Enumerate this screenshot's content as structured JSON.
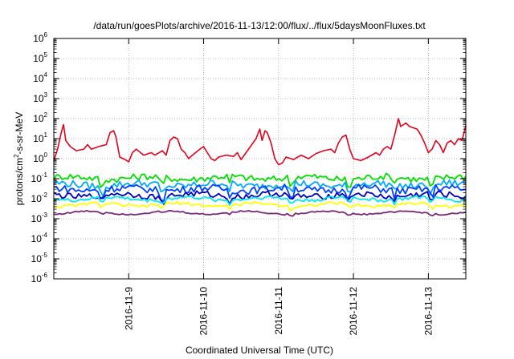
{
  "chart_data": {
    "type": "line",
    "title": "/data/run/goesPlots/archive/2016-11-13/12:00/flux/../flux/5daysMoonFluxes.txt",
    "xlabel": "Coordinated Universal Time (UTC)",
    "ylabel": {
      "pre": "protons/cm",
      "sup": "2",
      "post": "-s-sr-MeV"
    },
    "y_scale": "log",
    "ylim_exp": [
      -6,
      6
    ],
    "y_tick_labels": [
      {
        "base": "10",
        "exp": "6"
      },
      {
        "base": "10",
        "exp": "5"
      },
      {
        "base": "10",
        "exp": "4"
      },
      {
        "base": "10",
        "exp": "3"
      },
      {
        "base": "10",
        "exp": "2"
      },
      {
        "base": "10",
        "exp": "1"
      },
      {
        "base": "10",
        "exp": "0"
      },
      {
        "base": "10",
        "exp": "-1"
      },
      {
        "base": "10",
        "exp": "-2"
      },
      {
        "base": "10",
        "exp": "-3"
      },
      {
        "base": "10",
        "exp": "-4"
      },
      {
        "base": "10",
        "exp": "-5"
      },
      {
        "base": "10",
        "exp": "-6"
      }
    ],
    "xlim_days": [
      0,
      5.5
    ],
    "x_ticks": [
      {
        "day": 1,
        "label": "2016-11-9"
      },
      {
        "day": 2,
        "label": "2016-11-10"
      },
      {
        "day": 3,
        "label": "2016-11-11"
      },
      {
        "day": 4,
        "label": "2016-11-12"
      },
      {
        "day": 5,
        "label": "2016-11-13"
      }
    ],
    "grid": true,
    "legend": "none",
    "series": [
      {
        "color": "#e4001a",
        "points": [
          [
            0,
            0.8
          ],
          [
            0.05,
            3
          ],
          [
            0.1,
            20
          ],
          [
            0.13,
            50
          ],
          [
            0.16,
            8
          ],
          [
            0.22,
            4
          ],
          [
            0.3,
            2.5
          ],
          [
            0.4,
            3
          ],
          [
            0.45,
            5
          ],
          [
            0.5,
            3
          ],
          [
            0.6,
            4
          ],
          [
            0.7,
            5
          ],
          [
            0.75,
            20
          ],
          [
            0.8,
            25
          ],
          [
            0.83,
            12
          ],
          [
            0.88,
            1.2
          ],
          [
            0.95,
            0.9
          ],
          [
            1.0,
            0.7
          ],
          [
            1.05,
            2
          ],
          [
            1.1,
            3
          ],
          [
            1.2,
            1.5
          ],
          [
            1.3,
            2
          ],
          [
            1.35,
            1.5
          ],
          [
            1.45,
            2.5
          ],
          [
            1.5,
            1.5
          ],
          [
            1.55,
            8
          ],
          [
            1.6,
            12
          ],
          [
            1.65,
            10
          ],
          [
            1.7,
            3
          ],
          [
            1.75,
            2
          ],
          [
            1.8,
            1
          ],
          [
            1.85,
            1.5
          ],
          [
            1.95,
            3
          ],
          [
            2.0,
            4
          ],
          [
            2.05,
            2
          ],
          [
            2.1,
            1
          ],
          [
            2.15,
            0.8
          ],
          [
            2.2,
            1.2
          ],
          [
            2.3,
            1.5
          ],
          [
            2.4,
            1.3
          ],
          [
            2.45,
            2
          ],
          [
            2.5,
            0.9
          ],
          [
            2.6,
            3
          ],
          [
            2.7,
            10
          ],
          [
            2.75,
            30
          ],
          [
            2.78,
            8
          ],
          [
            2.82,
            25
          ],
          [
            2.85,
            20
          ],
          [
            2.9,
            6
          ],
          [
            2.95,
            1
          ],
          [
            3.0,
            0.5
          ],
          [
            3.05,
            0.6
          ],
          [
            3.1,
            1.2
          ],
          [
            3.2,
            0.9
          ],
          [
            3.3,
            1.5
          ],
          [
            3.4,
            1
          ],
          [
            3.5,
            1.8
          ],
          [
            3.6,
            2.5
          ],
          [
            3.7,
            3
          ],
          [
            3.75,
            2
          ],
          [
            3.8,
            6
          ],
          [
            3.85,
            12
          ],
          [
            3.9,
            15
          ],
          [
            3.95,
            3
          ],
          [
            4.0,
            1
          ],
          [
            4.1,
            0.8
          ],
          [
            4.2,
            1.2
          ],
          [
            4.3,
            2
          ],
          [
            4.35,
            1.5
          ],
          [
            4.4,
            3
          ],
          [
            4.45,
            4
          ],
          [
            4.5,
            3
          ],
          [
            4.55,
            15
          ],
          [
            4.6,
            100
          ],
          [
            4.63,
            40
          ],
          [
            4.7,
            60
          ],
          [
            4.75,
            40
          ],
          [
            4.85,
            30
          ],
          [
            4.9,
            15
          ],
          [
            4.95,
            6
          ],
          [
            5.0,
            2
          ],
          [
            5.05,
            3
          ],
          [
            5.1,
            8
          ],
          [
            5.15,
            5
          ],
          [
            5.2,
            2
          ],
          [
            5.25,
            6
          ],
          [
            5.3,
            8
          ],
          [
            5.35,
            5
          ],
          [
            5.4,
            10
          ],
          [
            5.45,
            8
          ],
          [
            5.5,
            45
          ]
        ]
      },
      {
        "color": "#00e000",
        "base": 0.11,
        "amp": 0.28,
        "phase": 0.3,
        "points": []
      },
      {
        "color": "#00aaff",
        "base": 0.05,
        "amp": 0.3,
        "phase": 1.1,
        "points": []
      },
      {
        "color": "#0040ff",
        "base": 0.03,
        "amp": 0.3,
        "phase": 2.0,
        "points": []
      },
      {
        "color": "#0000c0",
        "base": 0.015,
        "amp": 0.25,
        "phase": 2.7,
        "points": []
      },
      {
        "color": "#00e8e8",
        "base": 0.01,
        "amp": 0.15,
        "phase": 3.4,
        "points": []
      },
      {
        "color": "#ffff00",
        "base": 0.005,
        "amp": 0.12,
        "phase": 4.2,
        "points": []
      },
      {
        "color": "#7a2878",
        "base": 0.002,
        "amp": 0.06,
        "phase": 5.0,
        "points": []
      }
    ]
  }
}
